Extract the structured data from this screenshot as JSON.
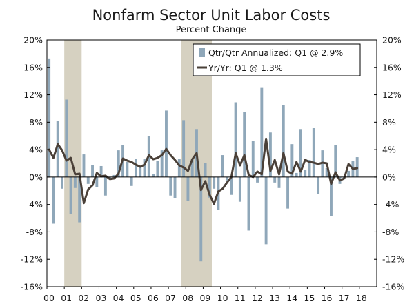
{
  "chart_data": {
    "type": "bar",
    "title": "Nonfarm Sector Unit Labor Costs",
    "subtitle": "Percent Change",
    "ylim": [
      -16,
      20
    ],
    "y_ticks": [
      "20%",
      "16%",
      "12%",
      "8%",
      "4%",
      "0%",
      "-4%",
      "-8%",
      "-12%",
      "-16%"
    ],
    "y_tick_values": [
      20,
      16,
      12,
      8,
      4,
      0,
      -4,
      -8,
      -12,
      -16
    ],
    "x_tick_labels": [
      "00",
      "01",
      "02",
      "03",
      "04",
      "05",
      "06",
      "07",
      "08",
      "09",
      "10",
      "11",
      "12",
      "13",
      "14",
      "15",
      "16",
      "17",
      "18"
    ],
    "x_start_year": 2000,
    "quarters_per_year": 4,
    "recessions": [
      {
        "start_quarter_index": 4,
        "end_quarter_index": 7
      },
      {
        "start_quarter_index": 31,
        "end_quarter_index": 37
      }
    ],
    "legend": {
      "bar_label": "Qtr/Qtr Annualized: Q1 @ 2.9%",
      "line_label": "Yr/Yr: Q1 @ 1.3%",
      "placement": "top-right"
    },
    "colors": {
      "bar": "#8fa7b9",
      "line": "#4a4038",
      "recession": "#d6d1c1",
      "axis": "#000000"
    },
    "series": [
      {
        "name": "Qtr/Qtr Annualized: Q1 @ 2.9%",
        "kind": "bar",
        "values": [
          17.3,
          -6.8,
          8.2,
          -1.7,
          11.3,
          -5.4,
          -1.6,
          -6.6,
          3.3,
          -1.0,
          1.7,
          -1.5,
          1.6,
          -2.7,
          -0.3,
          0.3,
          3.9,
          4.7,
          2.2,
          -1.3,
          2.7,
          1.5,
          2.6,
          6.0,
          0.4,
          2.4,
          3.9,
          9.7,
          -2.7,
          -3.1,
          2.6,
          8.3,
          -3.5,
          2.7,
          7.0,
          -12.3,
          2.1,
          -3.0,
          -1.7,
          -4.8,
          3.2,
          -0.5,
          -2.6,
          10.9,
          -3.6,
          9.5,
          -7.8,
          5.3,
          -0.8,
          13.1,
          -9.8,
          6.5,
          -0.8,
          -1.6,
          10.5,
          -4.6,
          4.8,
          0.6,
          7.0,
          1.0,
          2.5,
          7.2,
          -2.5,
          3.9,
          1.3,
          -5.7,
          4.7,
          -1.0,
          -0.2,
          0.9,
          2.4,
          2.9
        ]
      },
      {
        "name": "Yr/Yr: Q1 @ 1.3%",
        "kind": "line",
        "values": [
          4.0,
          2.8,
          4.8,
          3.9,
          2.4,
          2.8,
          0.4,
          0.5,
          -3.8,
          -1.8,
          -1.2,
          0.6,
          0.1,
          0.2,
          -0.3,
          -0.2,
          0.5,
          2.7,
          2.4,
          2.2,
          1.8,
          1.5,
          1.8,
          3.2,
          2.6,
          2.8,
          3.2,
          4.1,
          3.2,
          2.5,
          1.7,
          1.4,
          0.9,
          2.6,
          3.5,
          -1.9,
          -0.6,
          -2.6,
          -3.9,
          -2.1,
          -1.7,
          -0.8,
          0.0,
          3.5,
          1.7,
          3.2,
          0.3,
          0.0,
          0.8,
          0.4,
          5.6,
          0.9,
          2.5,
          0.4,
          3.5,
          0.8,
          0.5,
          2.2,
          0.8,
          2.5,
          2.2,
          2.1,
          1.9,
          2.1,
          2.0,
          -1.0,
          0.7,
          -0.5,
          -0.2,
          1.9,
          1.2,
          1.3
        ]
      }
    ]
  }
}
